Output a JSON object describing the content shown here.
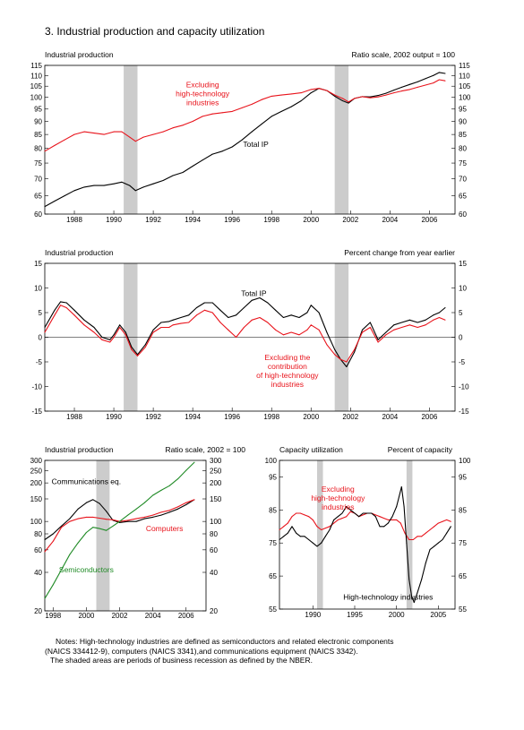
{
  "page": {
    "title": "3.  Industrial production and capacity utilization"
  },
  "colors": {
    "total": "#000000",
    "excluding": "#e8131b",
    "computers": "#e8131b",
    "semiconductors": "#1f8a25",
    "recession": "#cccccc"
  },
  "notes": [
    "Notes:  High-technology industries are defined as semiconductors and related electronic components",
    "(NAICS 334412-9), computers (NAICS 3341),and communications equipment (NAICS 3342).",
    "The shaded areas are periods of business recession as defined by the NBER."
  ],
  "chart_data": [
    {
      "id": "ip-level",
      "type": "line",
      "y_scale": "log",
      "left_label": "Industrial production",
      "right_label": "Ratio scale, 2002 output = 100",
      "xlim": [
        1986.5,
        2007.3
      ],
      "ylim": [
        60,
        115
      ],
      "x_ticks": [
        1988,
        1990,
        1992,
        1994,
        1996,
        1998,
        2000,
        2002,
        2004,
        2006
      ],
      "y_ticks": [
        60,
        65,
        70,
        75,
        80,
        85,
        90,
        95,
        100,
        105,
        110,
        115
      ],
      "recessions": [
        [
          1990.5,
          1991.2
        ],
        [
          2001.2,
          2001.9
        ]
      ],
      "annotations": [
        {
          "id": "excluding",
          "lines": [
            "Excluding",
            "high-technology",
            "industries"
          ],
          "x": 1994.5,
          "y": 104.5,
          "color": "#e8131b"
        },
        {
          "id": "total",
          "lines": [
            "Total IP"
          ],
          "x": 1997.2,
          "y": 80.5,
          "color": "#000000"
        }
      ],
      "series": [
        {
          "name": "Total IP",
          "color": "#000000",
          "x": [
            1986.5,
            1987,
            1987.5,
            1988,
            1988.5,
            1989,
            1989.5,
            1990,
            1990.4,
            1990.8,
            1991.1,
            1991.5,
            1992,
            1992.5,
            1993,
            1993.5,
            1994,
            1994.5,
            1995,
            1995.5,
            1996,
            1996.5,
            1997,
            1997.5,
            1998,
            1998.5,
            1999,
            1999.5,
            2000,
            2000.4,
            2000.8,
            2001.2,
            2001.6,
            2001.9,
            2002.2,
            2002.6,
            2003,
            2003.4,
            2003.8,
            2004.2,
            2004.6,
            2005,
            2005.4,
            2005.8,
            2006.2,
            2006.5,
            2006.8
          ],
          "y": [
            62,
            63.5,
            65,
            66.5,
            67.5,
            68,
            68,
            68.5,
            69,
            68,
            66.5,
            67.5,
            68.5,
            69.5,
            71,
            72,
            74,
            76,
            78,
            79,
            80.5,
            83,
            86,
            89,
            92,
            94,
            96,
            98.5,
            102,
            104,
            103,
            100.5,
            98.5,
            97.5,
            99.5,
            100.3,
            100.2,
            100.8,
            101.8,
            103.2,
            104.5,
            105.8,
            107,
            108.5,
            110,
            111.5,
            111
          ]
        },
        {
          "name": "Excluding high-technology industries",
          "color": "#e8131b",
          "x": [
            1986.5,
            1987,
            1987.5,
            1988,
            1988.5,
            1989,
            1989.5,
            1990,
            1990.4,
            1990.8,
            1991.1,
            1991.5,
            1992,
            1992.5,
            1993,
            1993.5,
            1994,
            1994.5,
            1995,
            1995.5,
            1996,
            1996.5,
            1997,
            1997.5,
            1998,
            1998.5,
            1999,
            1999.5,
            2000,
            2000.4,
            2000.8,
            2001.2,
            2001.6,
            2001.9,
            2002.2,
            2002.6,
            2003,
            2003.4,
            2003.8,
            2004.2,
            2004.6,
            2005,
            2005.4,
            2005.8,
            2006.2,
            2006.5,
            2006.8
          ],
          "y": [
            79,
            81,
            83,
            85,
            86,
            85.5,
            85,
            86,
            86,
            84,
            82.5,
            84,
            85,
            86,
            87.5,
            88.5,
            90,
            92,
            93,
            93.5,
            94,
            95.5,
            97,
            99,
            100.5,
            101,
            101.5,
            102,
            103.5,
            104,
            103,
            101,
            99.5,
            98,
            99.5,
            100.3,
            99.8,
            100.2,
            101,
            102,
            102.8,
            103.5,
            104.5,
            105.5,
            106.5,
            108,
            107.5
          ]
        }
      ]
    },
    {
      "id": "ip-change",
      "type": "line",
      "left_label": "Industrial production",
      "right_label": "Percent change from year earlier",
      "xlim": [
        1986.5,
        2007.3
      ],
      "ylim": [
        -15,
        15
      ],
      "x_ticks": [
        1988,
        1990,
        1992,
        1994,
        1996,
        1998,
        2000,
        2002,
        2004,
        2006
      ],
      "y_ticks": [
        -15,
        -10,
        -5,
        0,
        5,
        10,
        15
      ],
      "recessions": [
        [
          1990.5,
          1991.2
        ],
        [
          2001.2,
          2001.9
        ]
      ],
      "annotations": [
        {
          "id": "total",
          "lines": [
            "Total IP"
          ],
          "x": 1997.1,
          "y": 8.4,
          "color": "#000000"
        },
        {
          "id": "excluding",
          "lines": [
            "Excluding the",
            "contribution",
            "of high-technology",
            "industries"
          ],
          "x": 1998.8,
          "y": -4.6,
          "color": "#e8131b"
        }
      ],
      "series": [
        {
          "name": "Total IP",
          "color": "#000000",
          "x": [
            1986.5,
            1987,
            1987.3,
            1987.6,
            1988,
            1988.5,
            1989,
            1989.4,
            1989.8,
            1990,
            1990.3,
            1990.6,
            1990.9,
            1991.2,
            1991.6,
            1992,
            1992.4,
            1992.8,
            1993,
            1993.4,
            1993.8,
            1994.2,
            1994.6,
            1995,
            1995.4,
            1995.8,
            1996.2,
            1996.6,
            1997,
            1997.4,
            1997.8,
            1998.2,
            1998.6,
            1999,
            1999.4,
            1999.8,
            2000,
            2000.4,
            2000.8,
            2001.2,
            2001.5,
            2001.8,
            2002.2,
            2002.6,
            2003,
            2003.4,
            2003.8,
            2004.2,
            2004.6,
            2005,
            2005.4,
            2005.8,
            2006.2,
            2006.5,
            2006.8
          ],
          "y": [
            2,
            5.5,
            7.2,
            7,
            5.5,
            3.5,
            2,
            0,
            -0.5,
            0.5,
            2.5,
            1,
            -2,
            -3.5,
            -1.5,
            1.5,
            3,
            3.2,
            3.5,
            4,
            4.5,
            6,
            7,
            7,
            5.5,
            4,
            4.5,
            6,
            7.5,
            8,
            7,
            5.5,
            4,
            4.5,
            4,
            5,
            6.5,
            5,
            1,
            -2.5,
            -4.5,
            -6,
            -3,
            1.5,
            3,
            -0.5,
            1,
            2.5,
            3,
            3.5,
            3,
            3.5,
            4.5,
            5,
            6
          ]
        },
        {
          "name": "Excluding the contribution of high-technology industries",
          "color": "#e8131b",
          "x": [
            1986.5,
            1987,
            1987.3,
            1987.6,
            1988,
            1988.5,
            1989,
            1989.4,
            1989.8,
            1990,
            1990.3,
            1990.6,
            1990.9,
            1991.2,
            1991.6,
            1992,
            1992.4,
            1992.8,
            1993,
            1993.4,
            1993.8,
            1994.2,
            1994.6,
            1995,
            1995.4,
            1995.8,
            1996.2,
            1996.6,
            1997,
            1997.4,
            1997.8,
            1998.2,
            1998.6,
            1999,
            1999.4,
            1999.8,
            2000,
            2000.4,
            2000.8,
            2001.2,
            2001.5,
            2001.8,
            2002.2,
            2002.6,
            2003,
            2003.4,
            2003.8,
            2004.2,
            2004.6,
            2005,
            2005.4,
            2005.8,
            2006.2,
            2006.5,
            2006.8
          ],
          "y": [
            1,
            4.5,
            6.5,
            6,
            4.5,
            2.5,
            1,
            -0.5,
            -1,
            0,
            2,
            0.5,
            -2.5,
            -3.8,
            -2,
            1,
            2,
            2,
            2.5,
            2.8,
            3,
            4.5,
            5.5,
            5,
            3,
            1.5,
            0,
            2,
            3.5,
            4,
            3,
            1.5,
            0.5,
            1,
            0.5,
            1.5,
            2.5,
            1.5,
            -1.5,
            -3.5,
            -4.5,
            -5,
            -2.5,
            1,
            2,
            -1,
            0.5,
            1.5,
            2,
            2.5,
            2,
            2.5,
            3.5,
            4,
            3.5
          ]
        }
      ]
    },
    {
      "id": "hightech-ip",
      "type": "line",
      "y_scale": "log",
      "left_label": "Industrial production",
      "right_label": "Ratio scale, 2002 = 100",
      "xlim": [
        1997.5,
        2007.2
      ],
      "ylim": [
        20,
        300
      ],
      "x_ticks": [
        1998,
        2000,
        2002,
        2004,
        2006
      ],
      "y_ticks": [
        20,
        40,
        60,
        80,
        100,
        150,
        200,
        250,
        300
      ],
      "recessions": [
        [
          2000.6,
          2001.4
        ]
      ],
      "annotations": [
        {
          "id": "comm",
          "lines": [
            "Communications eq."
          ],
          "x": 2000.0,
          "y": 195,
          "color": "#000000"
        },
        {
          "id": "computers",
          "lines": [
            "Computers"
          ],
          "x": 2004.7,
          "y": 84,
          "color": "#e8131b"
        },
        {
          "id": "semis",
          "lines": [
            "Semiconductors"
          ],
          "x": 2000.0,
          "y": 40,
          "color": "#1f8a25"
        }
      ],
      "series": [
        {
          "name": "Communications eq.",
          "color": "#000000",
          "x": [
            1997.5,
            1998,
            1998.5,
            1999,
            1999.5,
            2000,
            2000.4,
            2000.8,
            2001.2,
            2001.6,
            2002,
            2002.5,
            2003,
            2003.5,
            2004,
            2004.5,
            2005,
            2005.5,
            2006,
            2006.5
          ],
          "y": [
            72,
            80,
            92,
            105,
            125,
            140,
            148,
            138,
            120,
            102,
            98,
            100,
            100,
            105,
            108,
            112,
            118,
            125,
            135,
            148
          ]
        },
        {
          "name": "Computers",
          "color": "#e8131b",
          "x": [
            1997.5,
            1998,
            1998.5,
            1999,
            1999.5,
            2000,
            2000.4,
            2000.8,
            2001.2,
            2001.6,
            2002,
            2002.5,
            2003,
            2003.5,
            2004,
            2004.5,
            2005,
            2005.5,
            2006,
            2006.5
          ],
          "y": [
            58,
            70,
            90,
            100,
            105,
            108,
            108,
            106,
            104,
            103,
            100,
            102,
            105,
            108,
            112,
            118,
            122,
            130,
            140,
            148
          ]
        },
        {
          "name": "Semiconductors",
          "color": "#1f8a25",
          "x": [
            1997.5,
            1998,
            1998.5,
            1999,
            1999.5,
            2000,
            2000.4,
            2000.8,
            2001.2,
            2001.6,
            2002,
            2002.5,
            2003,
            2003.5,
            2004,
            2004.5,
            2005,
            2005.5,
            2006,
            2006.5
          ],
          "y": [
            25,
            32,
            42,
            55,
            68,
            82,
            90,
            88,
            85,
            92,
            100,
            112,
            125,
            140,
            160,
            175,
            190,
            215,
            250,
            290
          ]
        }
      ]
    },
    {
      "id": "capacity",
      "type": "line",
      "left_label": "Capacity utilization",
      "right_label": "Percent of capacity",
      "xlim": [
        1986,
        2007
      ],
      "ylim": [
        55,
        100
      ],
      "x_ticks": [
        1990,
        1995,
        2000,
        2005
      ],
      "y_ticks": [
        55,
        65,
        75,
        85,
        95,
        100
      ],
      "recessions": [
        [
          1990.5,
          1991.2
        ],
        [
          2001.2,
          2001.9
        ]
      ],
      "annotations": [
        {
          "id": "excluding",
          "lines": [
            "Excluding",
            "high-technology",
            "industries"
          ],
          "x": 1993.0,
          "y": 90.5,
          "color": "#e8131b"
        },
        {
          "id": "hightech",
          "lines": [
            "High-technology industries"
          ],
          "x": 1999.0,
          "y": 57.9,
          "color": "#000000"
        }
      ],
      "series": [
        {
          "name": "Excluding high-technology industries",
          "color": "#e8131b",
          "x": [
            1986,
            1986.5,
            1987,
            1987.5,
            1988,
            1988.5,
            1989,
            1989.5,
            1990,
            1990.5,
            1991,
            1991.5,
            1992,
            1992.5,
            1993,
            1993.5,
            1994,
            1994.5,
            1995,
            1995.5,
            1996,
            1996.5,
            1997,
            1997.5,
            1998,
            1998.5,
            1999,
            1999.5,
            2000,
            2000.5,
            2001,
            2001.5,
            2002,
            2002.5,
            2003,
            2003.5,
            2004,
            2004.5,
            2005,
            2005.5,
            2006,
            2006.5
          ],
          "y": [
            79,
            80,
            81,
            83,
            84,
            84,
            83.5,
            83,
            82,
            80,
            79,
            79.5,
            80,
            81,
            82,
            82.5,
            83,
            84.5,
            84,
            83,
            83.5,
            84,
            84,
            83.5,
            83,
            82.5,
            82,
            82,
            82,
            81,
            78,
            76,
            76,
            77,
            77,
            78,
            79,
            80,
            81,
            81.5,
            82,
            81.5
          ]
        },
        {
          "name": "High-technology industries",
          "color": "#000000",
          "x": [
            1986,
            1986.5,
            1987,
            1987.5,
            1988,
            1988.5,
            1989,
            1989.5,
            1990,
            1990.5,
            1991,
            1991.5,
            1992,
            1992.5,
            1993,
            1993.5,
            1994,
            1994.5,
            1995,
            1995.5,
            1996,
            1996.5,
            1997,
            1997.5,
            1998,
            1998.5,
            1999,
            1999.5,
            2000,
            2000.3,
            2000.6,
            2000.9,
            2001.2,
            2001.5,
            2001.8,
            2002.1,
            2002.5,
            2003,
            2003.5,
            2004,
            2004.5,
            2005,
            2005.5,
            2006,
            2006.5
          ],
          "y": [
            76,
            77,
            78,
            80,
            78,
            77,
            77,
            76,
            75,
            74,
            75,
            77,
            79,
            82,
            83,
            84,
            86,
            85,
            84,
            83,
            84,
            84,
            84,
            83,
            80,
            80,
            81,
            83,
            86,
            89,
            92,
            86,
            75,
            64,
            59,
            57,
            60,
            64,
            69,
            73,
            74,
            75,
            76,
            78,
            80
          ]
        }
      ]
    }
  ]
}
